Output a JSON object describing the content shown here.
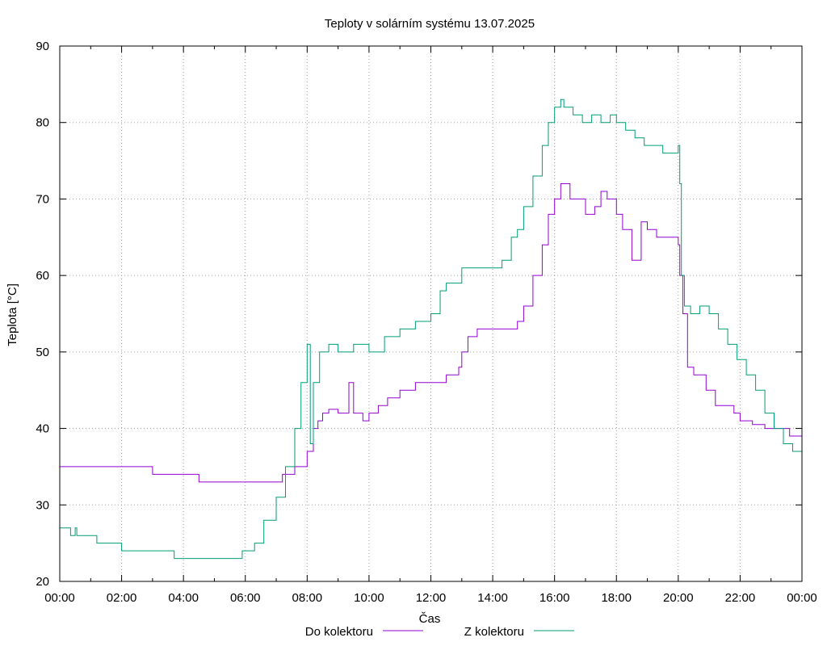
{
  "chart_data": {
    "type": "line",
    "title": "Teploty v solárním systému 13.07.2025",
    "xlabel": "Čas",
    "ylabel": "Teplota [°C]",
    "xlim": [
      0,
      24
    ],
    "ylim": [
      20,
      90
    ],
    "grid": true,
    "legend_position": "bottom-center",
    "x_tick_labels": [
      "00:00",
      "02:00",
      "04:00",
      "06:00",
      "08:00",
      "10:00",
      "12:00",
      "14:00",
      "16:00",
      "18:00",
      "20:00",
      "22:00",
      "00:00"
    ],
    "y_tick_labels": [
      "20",
      "30",
      "40",
      "50",
      "60",
      "70",
      "80",
      "90"
    ],
    "series": [
      {
        "name": "Do kolektoru",
        "color": "#9400d3",
        "x": [
          0,
          3.0,
          3.0,
          4.5,
          4.5,
          7.2,
          7.2,
          7.6,
          7.6,
          8.0,
          8.0,
          8.2,
          8.35,
          8.5,
          8.7,
          9.0,
          9.3,
          9.35,
          9.5,
          9.8,
          10.0,
          10.3,
          10.6,
          11.0,
          11.5,
          12.0,
          12.5,
          12.9,
          13.0,
          13.2,
          13.5,
          14.0,
          14.5,
          14.8,
          15.0,
          15.3,
          15.6,
          15.8,
          16.0,
          16.2,
          16.5,
          16.8,
          17.0,
          17.3,
          17.5,
          17.7,
          18.0,
          18.2,
          18.5,
          18.8,
          19.0,
          19.3,
          19.6,
          19.9,
          20.0,
          20.05,
          20.15,
          20.3,
          20.5,
          20.9,
          21.2,
          21.5,
          21.8,
          22.0,
          22.4,
          22.8,
          23.2,
          23.6,
          24.0
        ],
        "y": [
          35,
          35,
          34,
          34,
          33,
          33,
          34,
          34,
          35,
          35,
          37,
          40,
          41,
          42,
          42.5,
          42,
          42,
          46,
          42,
          41,
          42,
          43,
          44,
          45,
          46,
          46,
          47,
          48,
          50,
          52,
          53,
          53,
          53,
          54,
          56,
          60,
          64,
          68,
          70,
          72,
          70,
          70,
          68,
          69,
          71,
          70,
          68,
          66,
          62,
          67,
          66,
          65,
          65,
          65,
          64,
          60,
          55,
          48,
          47,
          45,
          43,
          43,
          42,
          41,
          40.5,
          40,
          40,
          39,
          39
        ]
      },
      {
        "name": "Z kolektoru",
        "color": "#009e73",
        "x": [
          0,
          0.3,
          0.35,
          0.5,
          0.55,
          1.2,
          1.2,
          2.0,
          2.0,
          3.7,
          3.7,
          5.9,
          5.9,
          6.3,
          6.6,
          7.0,
          7.3,
          7.6,
          7.8,
          8.0,
          8.1,
          8.2,
          8.4,
          8.7,
          9.0,
          9.5,
          10.0,
          10.5,
          11.0,
          11.5,
          12.0,
          12.3,
          12.5,
          13.0,
          13.5,
          14.0,
          14.3,
          14.6,
          14.8,
          15.0,
          15.3,
          15.6,
          15.8,
          16.0,
          16.2,
          16.3,
          16.6,
          16.9,
          17.2,
          17.5,
          17.8,
          18.0,
          18.3,
          18.6,
          18.9,
          19.2,
          19.5,
          19.8,
          20.0,
          20.05,
          20.1,
          20.2,
          20.4,
          20.7,
          21.0,
          21.3,
          21.6,
          21.9,
          22.2,
          22.5,
          22.8,
          23.1,
          23.4,
          23.7,
          24.0
        ],
        "y": [
          27,
          27,
          26,
          27,
          26,
          26,
          25,
          25,
          24,
          24,
          23,
          23,
          24,
          25,
          28,
          31,
          35,
          40,
          46,
          51,
          38,
          46,
          50,
          51,
          50,
          51,
          50,
          52,
          53,
          54,
          55,
          58,
          59,
          61,
          61,
          61,
          62,
          65,
          66,
          69,
          73,
          77,
          80,
          82,
          83,
          82,
          81,
          80,
          81,
          80,
          81,
          80,
          79,
          78,
          77,
          77,
          76,
          76,
          77,
          72,
          60,
          56,
          55,
          56,
          55,
          53,
          51,
          49,
          47,
          45,
          42,
          40,
          38,
          37,
          35
        ]
      }
    ]
  }
}
